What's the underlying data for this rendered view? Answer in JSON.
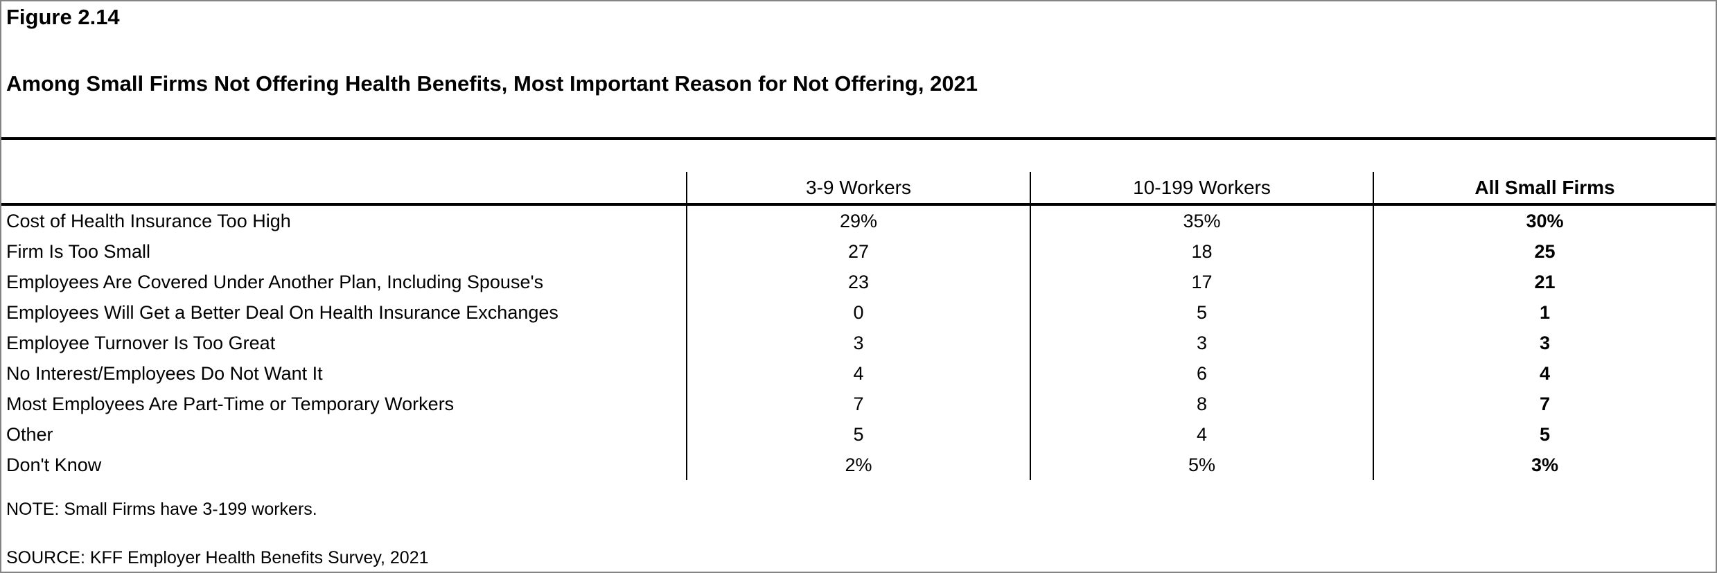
{
  "figure_label": "Figure 2.14",
  "title": "Among Small Firms Not Offering Health Benefits, Most Important Reason for Not Offering, 2021",
  "columns": [
    "3-9 Workers",
    "10-199 Workers",
    "All Small Firms"
  ],
  "rows": [
    {
      "label": "Cost of Health Insurance Too High",
      "values": [
        "29%",
        "35%",
        "30%"
      ]
    },
    {
      "label": "Firm Is Too Small",
      "values": [
        "27",
        "18",
        "25"
      ]
    },
    {
      "label": "Employees Are Covered Under Another Plan, Including Spouse's",
      "values": [
        "23",
        "17",
        "21"
      ]
    },
    {
      "label": "Employees Will Get a Better Deal On Health Insurance Exchanges",
      "values": [
        "0",
        "5",
        "1"
      ]
    },
    {
      "label": "Employee Turnover Is Too Great",
      "values": [
        "3",
        "3",
        "3"
      ]
    },
    {
      "label": "No Interest/Employees Do Not Want It",
      "values": [
        "4",
        "6",
        "4"
      ]
    },
    {
      "label": "Most Employees Are Part-Time or Temporary Workers",
      "values": [
        "7",
        "8",
        "7"
      ]
    },
    {
      "label": "Other",
      "values": [
        "5",
        "4",
        "5"
      ]
    },
    {
      "label": "Don't Know",
      "values": [
        "2%",
        "5%",
        "3%"
      ]
    }
  ],
  "note": "NOTE: Small Firms have 3-199 workers.",
  "source": "SOURCE: KFF Employer Health Benefits Survey, 2021",
  "colors": {
    "text": "#000000",
    "rule": "#000000",
    "frame": "#848484",
    "background": "#ffffff"
  },
  "chart_data": {
    "type": "table",
    "title": "Among Small Firms Not Offering Health Benefits, Most Important Reason for Not Offering, 2021",
    "figure_label": "Figure 2.14",
    "categories": [
      "Cost of Health Insurance Too High",
      "Firm Is Too Small",
      "Employees Are Covered Under Another Plan, Including Spouse's",
      "Employees Will Get a Better Deal On Health Insurance Exchanges",
      "Employee Turnover Is Too Great",
      "No Interest/Employees Do Not Want It",
      "Most Employees Are Part-Time or Temporary Workers",
      "Other",
      "Don't Know"
    ],
    "series": [
      {
        "name": "3-9 Workers",
        "values": [
          29,
          27,
          23,
          0,
          3,
          4,
          7,
          5,
          2
        ]
      },
      {
        "name": "10-199 Workers",
        "values": [
          35,
          18,
          17,
          5,
          3,
          6,
          8,
          4,
          5
        ]
      },
      {
        "name": "All Small Firms",
        "values": [
          30,
          25,
          21,
          1,
          3,
          4,
          7,
          5,
          3
        ]
      }
    ],
    "value_unit": "percent",
    "note": "NOTE: Small Firms have 3-199 workers.",
    "source": "SOURCE: KFF Employer Health Benefits Survey, 2021"
  }
}
